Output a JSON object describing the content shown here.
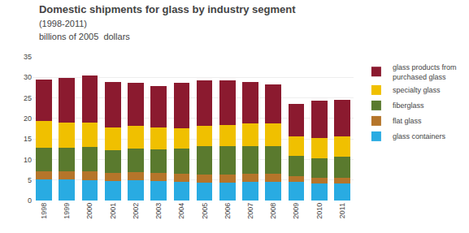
{
  "chart_data": {
    "type": "bar",
    "stacked": true,
    "title": "Domestic shipments for glass by industry segment",
    "subtitle": [
      "(1998-2011)",
      "billions of 2005  dollars"
    ],
    "categories": [
      "1998",
      "1999",
      "2000",
      "2001",
      "2002",
      "2003",
      "2004",
      "2005",
      "2006",
      "2007",
      "2008",
      "2009",
      "2010",
      "2011"
    ],
    "series": [
      {
        "name": "glass containers",
        "color": "#29abe2",
        "values": [
          5.1,
          5.1,
          5.0,
          4.8,
          4.9,
          4.8,
          4.6,
          4.4,
          4.3,
          4.5,
          4.6,
          4.5,
          4.1,
          4.1
        ]
      },
      {
        "name": "flat glass",
        "color": "#b5752a",
        "values": [
          2.0,
          2.0,
          2.1,
          2.0,
          2.0,
          2.0,
          2.0,
          2.0,
          2.0,
          2.0,
          2.0,
          1.5,
          1.5,
          1.5
        ]
      },
      {
        "name": "fiberglass",
        "color": "#5a7a2e",
        "values": [
          5.8,
          5.8,
          5.9,
          5.5,
          5.8,
          5.7,
          6.0,
          6.8,
          7.0,
          6.8,
          6.7,
          4.8,
          4.7,
          5.0
        ]
      },
      {
        "name": "specialty glass",
        "color": "#f0c000",
        "values": [
          6.5,
          6.0,
          6.0,
          5.5,
          5.5,
          5.2,
          5.0,
          5.0,
          5.0,
          5.5,
          5.5,
          4.8,
          5.0,
          5.0
        ]
      },
      {
        "name": "glass products from\npurchased glass",
        "color": "#8b1a2f",
        "values": [
          10.0,
          11.0,
          11.5,
          11.0,
          10.5,
          10.2,
          11.0,
          11.0,
          11.0,
          10.0,
          9.5,
          8.0,
          9.0,
          9.0
        ]
      }
    ],
    "ylim": [
      0,
      35
    ],
    "yticks": [
      0,
      5,
      10,
      15,
      20,
      25,
      30,
      35
    ],
    "grid": true,
    "legend": "right"
  }
}
